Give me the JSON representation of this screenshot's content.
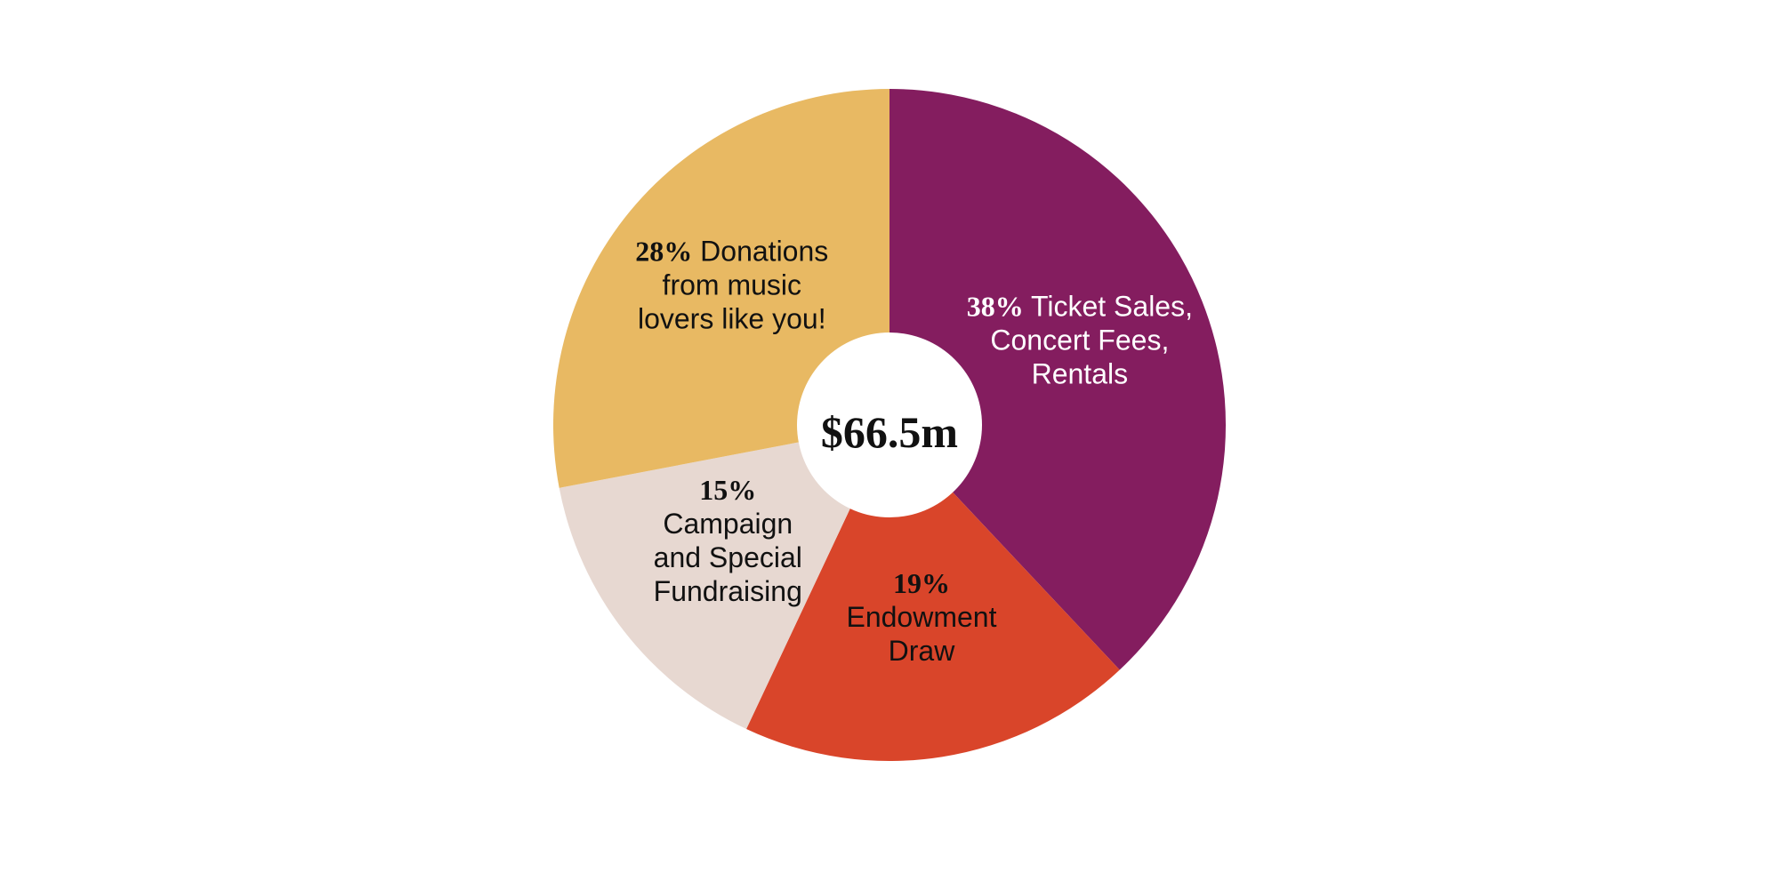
{
  "chart_data": {
    "type": "pie",
    "style": "donut",
    "center_label": "$66.5m",
    "slices": [
      {
        "percent_text": "38%",
        "value": 38,
        "label_lines": [
          "Ticket Sales,",
          "Concert Fees,",
          "Rentals"
        ],
        "color": "#841d5f",
        "text_color": "#ffffff"
      },
      {
        "percent_text": "19%",
        "value": 19,
        "label_lines": [
          "Endowment",
          "Draw"
        ],
        "color": "#d9452a",
        "text_color": "#111111"
      },
      {
        "percent_text": "15%",
        "value": 15,
        "label_lines": [
          "Campaign",
          "and Special",
          "Fundraising"
        ],
        "color": "#e7d8d1",
        "text_color": "#111111"
      },
      {
        "percent_text": "28%",
        "value": 28,
        "label_lines": [
          "Donations",
          "from music",
          "lovers like you!"
        ],
        "color": "#e8b963",
        "text_color": "#111111"
      }
    ]
  }
}
